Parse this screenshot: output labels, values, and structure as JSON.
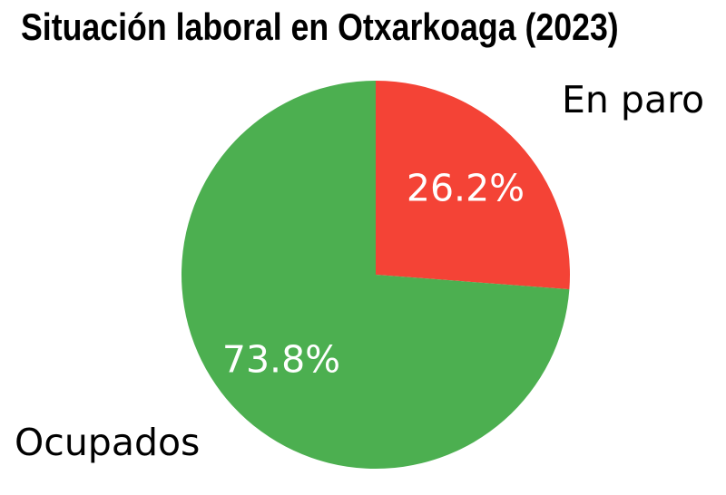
{
  "chart_data": {
    "type": "pie",
    "title": "Situación laboral en Otxarkoaga (2023)",
    "categories": [
      "En paro",
      "Ocupados"
    ],
    "values": [
      26.2,
      73.8
    ],
    "slices": [
      {
        "label": "En paro",
        "value": 26.2,
        "pct_label": "26.2%",
        "color": "#f44336",
        "pct_text_color": "#ffffff",
        "label_color": "#000000"
      },
      {
        "label": "Ocupados",
        "value": 73.8,
        "pct_label": "73.8%",
        "color": "#4caf50",
        "pct_text_color": "#ffffff",
        "label_color": "#000000"
      }
    ],
    "start_angle_deg": 90,
    "direction": "clockwise",
    "legend": "none",
    "grid": false,
    "background": "#ffffff",
    "title_color": "#000000"
  }
}
